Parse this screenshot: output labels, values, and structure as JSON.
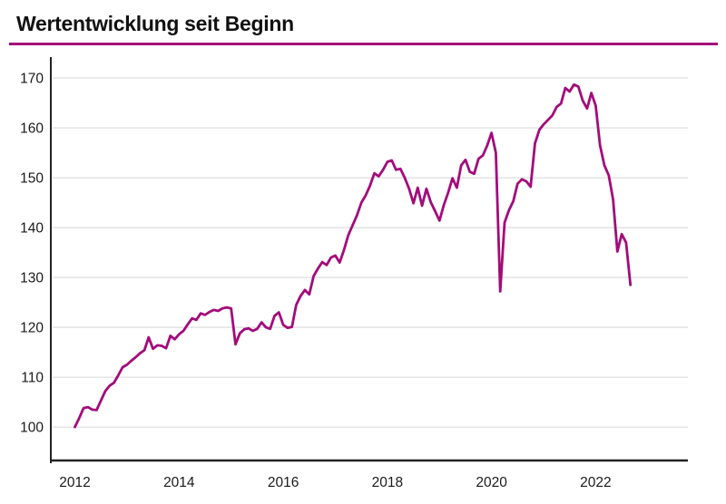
{
  "header": {
    "title": "Wertentwicklung seit Beginn"
  },
  "colors": {
    "line": "#A30B7A",
    "title_underline": "#A30B7A",
    "axis": "#222222",
    "gridline": "#E2E2E2",
    "label_text": "#1A1A1A",
    "background": "#FFFFFF"
  },
  "chart_data": {
    "type": "line",
    "title": "Wertentwicklung seit Beginn",
    "xlabel": "",
    "ylabel": "",
    "grid": "horizontal-only",
    "legend": "none",
    "y_ticks": [
      100,
      110,
      120,
      130,
      140,
      150,
      160,
      170
    ],
    "y_tick_labels": [
      "100",
      "110",
      "120",
      "130",
      "140",
      "150",
      "160",
      "170"
    ],
    "x_ticks_years": [
      2012,
      2014,
      2016,
      2018,
      2020,
      2022
    ],
    "x_tick_labels": [
      "2012",
      "2014",
      "2016",
      "2018",
      "2020",
      "2022"
    ],
    "xlim_decimal_years": [
      2011.555,
      2023.77
    ],
    "ylim": [
      93.3,
      174.2
    ],
    "series": [
      {
        "dates": [
          "2012-01",
          "2012-02",
          "2012-03",
          "2012-04",
          "2012-05",
          "2012-06",
          "2012-07",
          "2012-08",
          "2012-09",
          "2012-10",
          "2012-11",
          "2012-12",
          "2013-01",
          "2013-02",
          "2013-03",
          "2013-04",
          "2013-05",
          "2013-06",
          "2013-07",
          "2013-08",
          "2013-09",
          "2013-10",
          "2013-11",
          "2013-12",
          "2014-01",
          "2014-02",
          "2014-03",
          "2014-04",
          "2014-05",
          "2014-06",
          "2014-07",
          "2014-08",
          "2014-09",
          "2014-10",
          "2014-11",
          "2014-12",
          "2015-01",
          "2015-02",
          "2015-03",
          "2015-04",
          "2015-05",
          "2015-06",
          "2015-07",
          "2015-08",
          "2015-09",
          "2015-10",
          "2015-11",
          "2015-12",
          "2016-01",
          "2016-02",
          "2016-03",
          "2016-04",
          "2016-05",
          "2016-06",
          "2016-07",
          "2016-08",
          "2016-09",
          "2016-10",
          "2016-11",
          "2016-12",
          "2017-01",
          "2017-02",
          "2017-03",
          "2017-04",
          "2017-05",
          "2017-06",
          "2017-07",
          "2017-08",
          "2017-09",
          "2017-10",
          "2017-11",
          "2017-12",
          "2018-01",
          "2018-02",
          "2018-03",
          "2018-04",
          "2018-05",
          "2018-06",
          "2018-07",
          "2018-08",
          "2018-09",
          "2018-10",
          "2018-11",
          "2018-12",
          "2019-01",
          "2019-02",
          "2019-03",
          "2019-04",
          "2019-05",
          "2019-06",
          "2019-07",
          "2019-08",
          "2019-09",
          "2019-10",
          "2019-11",
          "2019-12",
          "2020-01",
          "2020-02",
          "2020-03",
          "2020-04",
          "2020-05",
          "2020-06",
          "2020-07",
          "2020-08",
          "2020-09",
          "2020-10",
          "2020-11",
          "2020-12",
          "2021-01",
          "2021-02",
          "2021-03",
          "2021-04",
          "2021-05",
          "2021-06",
          "2021-07",
          "2021-08",
          "2021-09",
          "2021-10",
          "2021-11",
          "2021-12",
          "2022-01",
          "2022-02",
          "2022-03",
          "2022-04",
          "2022-05",
          "2022-06",
          "2022-07",
          "2022-08",
          "2022-09"
        ],
        "values": [
          100.0,
          101.8,
          103.8,
          104.0,
          103.5,
          103.4,
          105.3,
          107.2,
          108.3,
          108.9,
          110.4,
          112.0,
          112.5,
          113.3,
          114.0,
          114.8,
          115.4,
          118.0,
          115.7,
          116.4,
          116.3,
          115.8,
          118.3,
          117.6,
          118.6,
          119.3,
          120.6,
          121.8,
          121.5,
          122.8,
          122.5,
          123.1,
          123.5,
          123.3,
          123.8,
          124.0,
          123.8,
          116.6,
          118.8,
          119.6,
          119.8,
          119.3,
          119.7,
          121.0,
          120.0,
          119.7,
          122.3,
          123.0,
          120.5,
          119.9,
          120.1,
          124.5,
          126.3,
          127.5,
          126.6,
          130.3,
          131.8,
          133.1,
          132.5,
          134.0,
          134.4,
          133.0,
          135.5,
          138.5,
          140.5,
          142.5,
          145.0,
          146.5,
          148.4,
          150.9,
          150.3,
          151.6,
          153.2,
          153.5,
          151.6,
          151.8,
          150.0,
          147.8,
          144.9,
          148.0,
          144.4,
          147.8,
          145.1,
          143.3,
          141.4,
          144.5,
          147.0,
          149.9,
          148.0,
          152.5,
          153.6,
          151.2,
          150.8,
          153.8,
          154.5,
          156.5,
          159.0,
          155.0,
          127.2,
          141.0,
          143.5,
          145.3,
          148.8,
          149.7,
          149.3,
          148.2,
          156.9,
          159.6,
          160.7,
          161.6,
          162.5,
          164.2,
          164.9,
          168.0,
          167.3,
          168.7,
          168.3,
          165.5,
          163.9,
          167.0,
          164.5,
          156.5,
          152.5,
          150.5,
          145.6,
          135.2,
          138.7,
          137.0,
          128.5
        ]
      }
    ]
  }
}
